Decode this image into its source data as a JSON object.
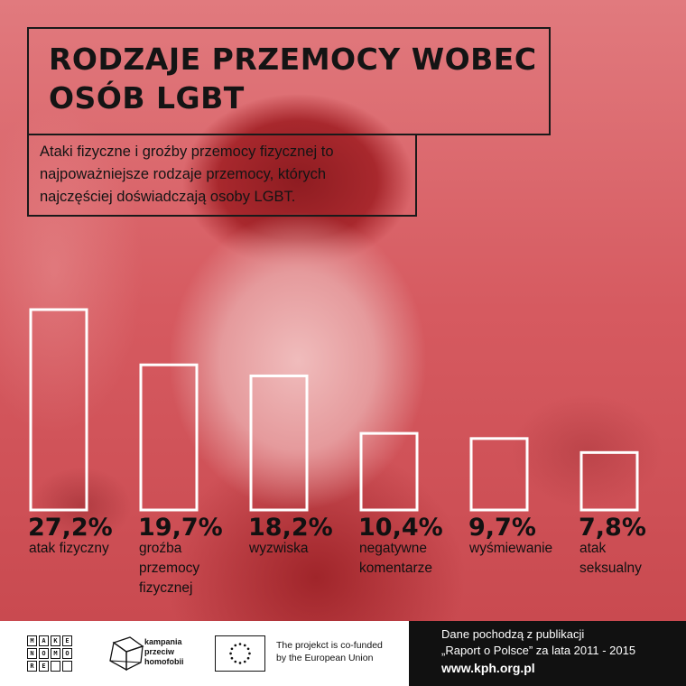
{
  "header": {
    "title_lines": [
      "RODZAJE PRZEMOCY WOBEC",
      "OSÓB LGBT"
    ],
    "subtitle_lines": [
      "Ataki fizyczne i groźby przemocy fizycznej to",
      "najpoważniejsze rodzaje przemocy, których",
      "najczęściej doświadczają osoby LGBT."
    ]
  },
  "chart_data": {
    "type": "bar",
    "categories": [
      "atak fizyczny",
      "groźba przemocy fizycznej",
      "wyzwiska",
      "negatywne komentarze",
      "wyśmiewanie",
      "atak seksualny"
    ],
    "category_lines": [
      [
        "atak fizyczny"
      ],
      [
        "groźba",
        "przemocy",
        "fizycznej"
      ],
      [
        "wyzwiska"
      ],
      [
        "negatywne",
        "komentarze"
      ],
      [
        "wyśmiewanie"
      ],
      [
        "atak",
        "seksualny"
      ]
    ],
    "values": [
      27.2,
      19.7,
      18.2,
      10.4,
      9.7,
      7.8
    ],
    "value_labels": [
      "27,2%",
      "19,7%",
      "18,2%",
      "10,4%",
      "9,7%",
      "7,8%"
    ],
    "ylim": [
      0,
      27.2
    ],
    "grid": false,
    "bar_style": "outline",
    "colors": {
      "bar_stroke": "#ffffff",
      "label": "#111111"
    }
  },
  "footer": {
    "logo_letters": [
      "M",
      "A",
      "K",
      "E",
      "N",
      "O",
      "M",
      "O",
      "R",
      "E",
      "",
      ""
    ],
    "campaign_lines": [
      "kampania",
      "przeciw",
      "homofobii"
    ],
    "eu_lines": [
      "The projekct is co-funded",
      "by the European Union"
    ],
    "source_line1": "Dane pochodzą z publikacji",
    "source_line2": "„Raport o Polsce” za lata 2011 - 2015",
    "source_url": "www.kph.org.pl",
    "colors": {
      "dark_panel": "#111111",
      "eu_star": "#111111"
    }
  }
}
